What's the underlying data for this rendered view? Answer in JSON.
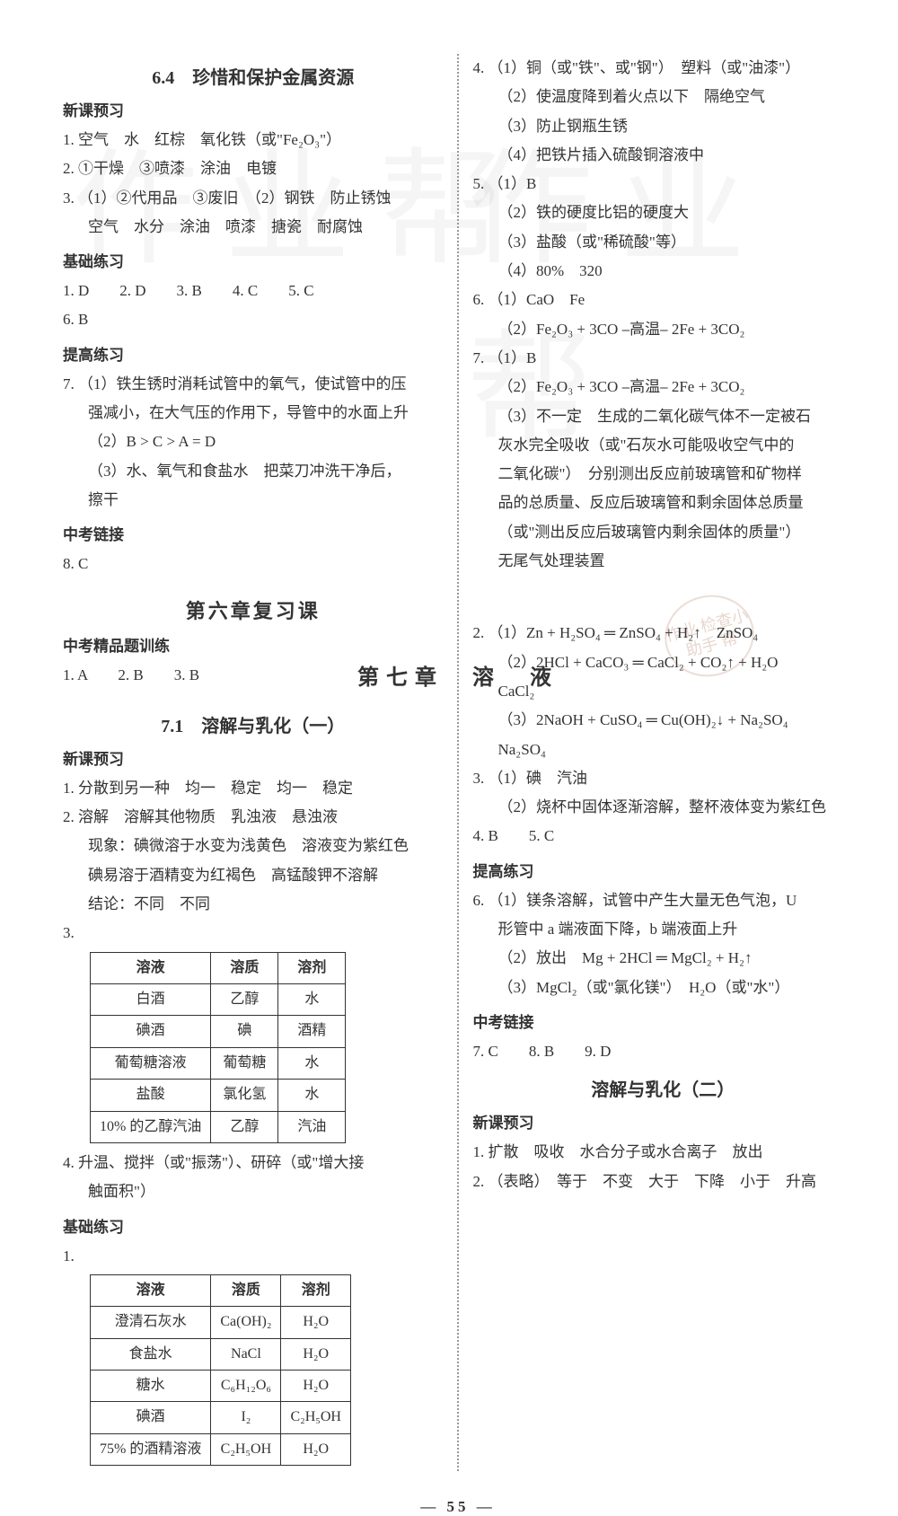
{
  "watermark": "作业帮",
  "stamp_text": "作业\n检查小助手\n帮",
  "page_number": "— 55 —",
  "left": {
    "sec64_title": "6.4　珍惜和保护金属资源",
    "preview_head": "新课预习",
    "p1": "1. 空气　水　红棕　氧化铁（或\"Fe₂O₃\"）",
    "p2": "2. ①干燥　③喷漆　涂油　电镀",
    "p3": "3. （1）②代用品　③废旧　（2）钢铁　防止锈蚀",
    "p3b": "空气　水分　涂油　喷漆　搪瓷　耐腐蚀",
    "basic_head": "基础练习",
    "b1": "1. D　　2. D　　3. B　　4. C　　5. C",
    "b2": "6. B",
    "improve_head": "提高练习",
    "i7a": "7. （1）铁生锈时消耗试管中的氧气，使试管中的压",
    "i7a2": "强减小，在大气压的作用下，导管中的水面上升",
    "i7b": "（2）B > C > A = D",
    "i7c": "（3）水、氧气和食盐水　把菜刀冲洗干净后，",
    "i7c2": "擦干",
    "exam_head": "中考链接",
    "e8": "8. C",
    "ch6_review": "第六章复习课",
    "exam_train_head": "中考精品题训练",
    "et1": "1. A　　2. B　　3. B",
    "sec71_title": "7.1　溶解与乳化（一）",
    "preview_head2": "新课预习",
    "pp1": "1. 分散到另一种　均一　稳定　均一　稳定",
    "pp2": "2. 溶解　溶解其他物质　乳浊液　悬浊液",
    "pp2b": "现象：碘微溶于水变为浅黄色　溶液变为紫红色",
    "pp2c": "碘易溶于酒精变为红褐色　高锰酸钾不溶解",
    "pp2d": "结论：不同　不同",
    "pp3": "3.",
    "table1": {
      "headers": [
        "溶液",
        "溶质",
        "溶剂"
      ],
      "rows": [
        [
          "白酒",
          "乙醇",
          "水"
        ],
        [
          "碘酒",
          "碘",
          "酒精"
        ],
        [
          "葡萄糖溶液",
          "葡萄糖",
          "水"
        ],
        [
          "盐酸",
          "氯化氢",
          "水"
        ],
        [
          "10% 的乙醇汽油",
          "乙醇",
          "汽油"
        ]
      ]
    },
    "pp4": "4. 升温、搅拌（或\"振荡\"）、研碎（或\"增大接",
    "pp4b": "触面积\"）",
    "basic_head2": "基础练习",
    "bp1": "1.",
    "table2": {
      "headers": [
        "溶液",
        "溶质",
        "溶剂"
      ],
      "rows": [
        [
          "澄清石灰水",
          "Ca(OH)₂",
          "H₂O"
        ],
        [
          "食盐水",
          "NaCl",
          "H₂O"
        ],
        [
          "糖水",
          "C₆H₁₂O₆",
          "H₂O"
        ],
        [
          "碘酒",
          "I₂",
          "C₂H₅OH"
        ],
        [
          "75% 的酒精溶液",
          "C₂H₅OH",
          "H₂O"
        ]
      ]
    }
  },
  "right": {
    "r4a": "4. （1）铜（或\"铁\"、或\"钢\"）　塑料（或\"油漆\"）",
    "r4b": "（2）使温度降到着火点以下　隔绝空气",
    "r4c": "（3）防止钢瓶生锈",
    "r4d": "（4）把铁片插入硫酸铜溶液中",
    "r5a": "5. （1）B",
    "r5b": "（2）铁的硬度比铝的硬度大",
    "r5c": "（3）盐酸（或\"稀硫酸\"等）",
    "r5d": "（4）80%　320",
    "r6a": "6. （1）CaO　Fe",
    "r6b_prefix": "（2）",
    "r6b_eq": "Fe₂O₃ + 3CO ⎯高温⎯ 2Fe + 3CO₂",
    "r7a": "7. （1）B",
    "r7b_prefix": "（2）",
    "r7b_eq": "Fe₂O₃ + 3CO ⎯高温⎯ 2Fe + 3CO₂",
    "r7c": "（3）不一定　生成的二氧化碳气体不一定被石",
    "r7c2": "灰水完全吸收（或\"石灰水可能吸收空气中的",
    "r7c3": "二氧化碳\"）　分别测出反应前玻璃管和矿物样",
    "r7c4": "品的总质量、反应后玻璃管和剩余固体总质量",
    "r7c5": "（或\"测出反应后玻璃管内剩余固体的质量\"）",
    "r7c6": "无尾气处理装置",
    "ch7_title": "第七章　溶　液",
    "rr2a": "2. （1）Zn + H₂SO₄ ═ ZnSO₄ + H₂↑　ZnSO₄",
    "rr2b": "（2）2HCl + CaCO₃ ═ CaCl₂ + CO₂↑ + H₂O",
    "rr2b2": "CaCl₂",
    "rr2c": "（3）2NaOH + CuSO₄ ═ Cu(OH)₂↓ + Na₂SO₄",
    "rr2c2": "Na₂SO₄",
    "rr3a": "3. （1）碘　汽油",
    "rr3b": "（2）烧杯中固体逐渐溶解，整杯液体变为紫红色",
    "rr4": "4. B　　5. C",
    "improve_head2": "提高练习",
    "rr6a": "6. （1）镁条溶解，试管中产生大量无色气泡，U",
    "rr6a2": "形管中 a 端液面下降，b 端液面上升",
    "rr6b": "（2）放出　Mg + 2HCl ═ MgCl₂ + H₂↑",
    "rr6c": "（3）MgCl₂（或\"氯化镁\"）　H₂O（或\"水\"）",
    "exam_head2": "中考链接",
    "rr7": "7. C　　8. B　　9. D",
    "sub72_title": "溶解与乳化（二）",
    "preview_head3": "新课预习",
    "rp1": "1. 扩散　吸收　水合分子或水合离子　放出",
    "rp2": "2. （表略）　等于　不变　大于　下降　小于　升高"
  }
}
